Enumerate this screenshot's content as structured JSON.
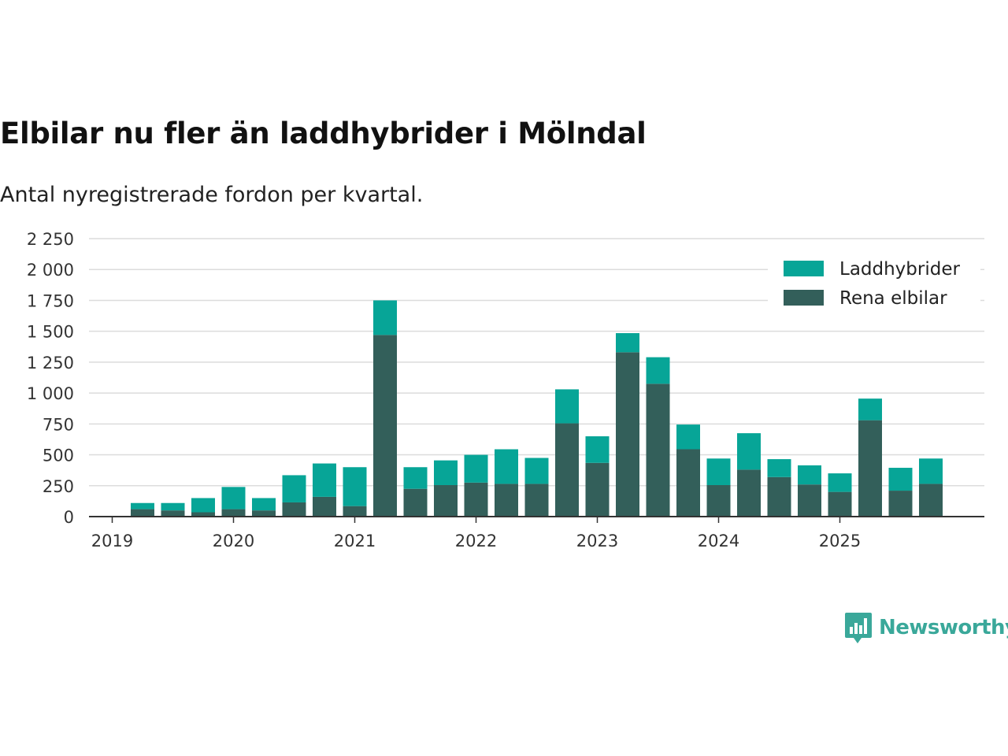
{
  "title": "Elbilar nu fler än laddhybrider i Mölndal",
  "subtitle": "Antal nyregistrerade fordon per kvartal.",
  "brand": {
    "name": "Newsworthy",
    "color": "#3aa89a"
  },
  "chart_data": {
    "type": "bar",
    "stacked": true,
    "ylim": [
      0,
      2250
    ],
    "yticks": [
      0,
      250,
      500,
      750,
      1000,
      1250,
      1500,
      1750,
      2000,
      2250
    ],
    "ytick_labels": [
      "0",
      "250",
      "500",
      "750",
      "1 000",
      "1 250",
      "1 500",
      "1 750",
      "2 000",
      "2 250"
    ],
    "x_year_labels": [
      "2019",
      "2020",
      "2021",
      "2022",
      "2023",
      "2024",
      "2025"
    ],
    "categories": [
      "2019 Q1",
      "2019 Q2",
      "2019 Q3",
      "2019 Q4",
      "2020 Q1",
      "2020 Q2",
      "2020 Q3",
      "2020 Q4",
      "2021 Q1",
      "2021 Q2",
      "2021 Q3",
      "2021 Q4",
      "2022 Q1",
      "2022 Q2",
      "2022 Q3",
      "2022 Q4",
      "2023 Q1",
      "2023 Q2",
      "2023 Q3",
      "2023 Q4",
      "2024 Q1",
      "2024 Q2",
      "2024 Q3",
      "2024 Q4",
      "2025 Q1",
      "2025 Q2",
      "2025 Q3",
      "2025 Q4"
    ],
    "legend_position": "top-right",
    "series": [
      {
        "name": "Rena elbilar",
        "color": "#335f5a",
        "values": [
          0,
          60,
          50,
          35,
          60,
          50,
          115,
          160,
          85,
          1470,
          225,
          255,
          275,
          265,
          265,
          755,
          435,
          1330,
          1075,
          545,
          255,
          380,
          320,
          260,
          200,
          780,
          210,
          265
        ]
      },
      {
        "name": "Laddhybrider",
        "color": "#07a597",
        "values": [
          0,
          50,
          60,
          115,
          180,
          100,
          220,
          270,
          315,
          280,
          175,
          200,
          225,
          280,
          210,
          275,
          215,
          155,
          215,
          200,
          215,
          295,
          145,
          155,
          150,
          175,
          185,
          205
        ]
      }
    ],
    "legend_order": [
      "Laddhybrider",
      "Rena elbilar"
    ]
  }
}
